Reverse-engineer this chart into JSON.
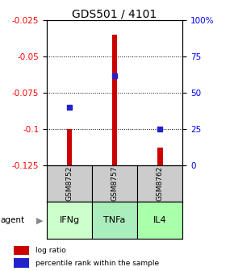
{
  "title": "GDS501 / 4101",
  "categories": [
    "IFNg",
    "TNFa",
    "IL4"
  ],
  "gsm_labels": [
    "GSM8752",
    "GSM8757",
    "GSM8762"
  ],
  "log_ratio": [
    -0.1,
    -0.035,
    -0.113
  ],
  "percentile_rank": [
    40,
    62,
    25
  ],
  "ylim_left": [
    -0.125,
    -0.025
  ],
  "ylim_right": [
    0,
    100
  ],
  "yticks_left": [
    -0.125,
    -0.1,
    -0.075,
    -0.05,
    -0.025
  ],
  "yticks_right": [
    0,
    25,
    50,
    75,
    100
  ],
  "bar_color": "#cc0000",
  "marker_color": "#2222cc",
  "agent_colors": [
    "#ccffcc",
    "#aaeebb",
    "#aaffaa"
  ],
  "gsm_bg_color": "#cccccc",
  "legend_bar_label": "log ratio",
  "legend_marker_label": "percentile rank within the sample",
  "agent_label": "agent",
  "title_fontsize": 10,
  "tick_fontsize": 7.5,
  "bar_width": 0.12
}
